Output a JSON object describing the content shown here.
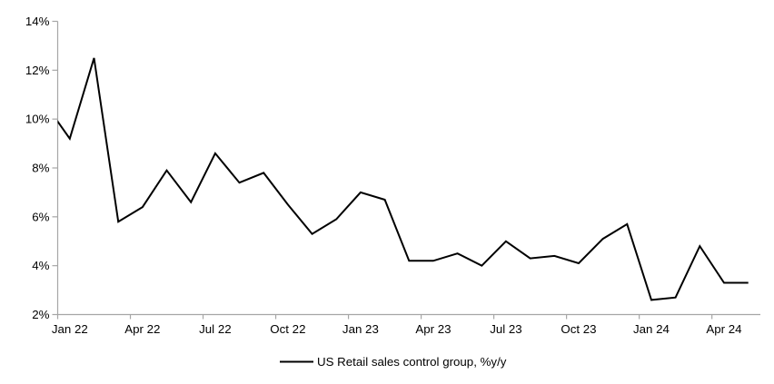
{
  "chart_data": {
    "type": "line",
    "title": "",
    "xlabel": "",
    "ylabel": "",
    "categories": [
      "Dec 21",
      "Jan 22",
      "Feb 22",
      "Mar 22",
      "Apr 22",
      "May 22",
      "Jun 22",
      "Jul 22",
      "Aug 22",
      "Sep 22",
      "Oct 22",
      "Nov 22",
      "Dec 22",
      "Jan 23",
      "Feb 23",
      "Mar 23",
      "Apr 23",
      "May 23",
      "Jun 23",
      "Jul 23",
      "Aug 23",
      "Sep 23",
      "Oct 23",
      "Nov 23",
      "Dec 23",
      "Jan 24",
      "Feb 24",
      "Mar 24",
      "Apr 24",
      "May 24"
    ],
    "series": [
      {
        "name": "US Retail sales control group, %y/y",
        "color": "#000000",
        "values": [
          10.6,
          9.2,
          12.5,
          5.8,
          6.4,
          7.9,
          6.6,
          8.6,
          7.4,
          7.8,
          6.5,
          5.3,
          5.9,
          7.0,
          6.7,
          4.2,
          4.2,
          4.5,
          4.0,
          5.0,
          4.3,
          4.4,
          4.1,
          5.1,
          5.7,
          2.6,
          2.7,
          4.8,
          3.3,
          3.3
        ]
      }
    ],
    "first_category_clipped_at_left_axis": true,
    "ylim": [
      2,
      14
    ],
    "y_tick_step": 2,
    "y_tick_labels": [
      "2%",
      "4%",
      "6%",
      "8%",
      "10%",
      "12%",
      "14%"
    ],
    "x_tick_labels": [
      "Jan 22",
      "Apr 22",
      "Jul 22",
      "Oct 22",
      "Jan 23",
      "Apr 23",
      "Jul 23",
      "Oct 23",
      "Jan 24",
      "Apr 24"
    ],
    "x_label_start_index": 1,
    "x_label_step": 3,
    "grid": "off",
    "legend_position": "bottom-center",
    "axis_color": "#a6a6a6",
    "text_color": "#000000",
    "background_color": "#ffffff"
  },
  "legend": {
    "label": "US Retail sales control group, %y/y"
  }
}
